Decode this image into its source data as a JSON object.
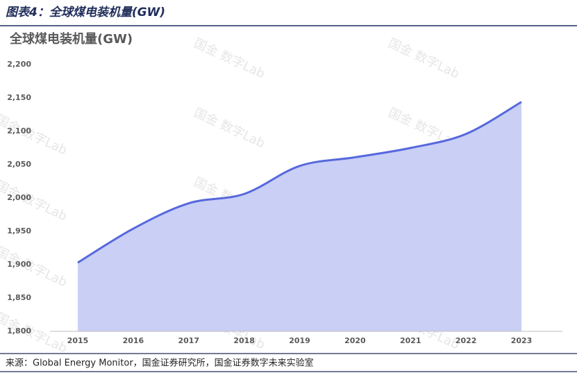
{
  "caption": "图表4：全球煤电装机量(GW)",
  "source": "来源：Global Energy Monitor，国金证券研究所，国金证券数字未来实验室",
  "watermark": "国金 数字Lab",
  "chart_data": {
    "type": "area",
    "title": "全球煤电装机量(GW)",
    "categories": [
      "2015",
      "2016",
      "2017",
      "2018",
      "2019",
      "2020",
      "2021",
      "2022",
      "2023"
    ],
    "values": [
      1903,
      1954,
      1992,
      2006,
      2048,
      2061,
      2075,
      2096,
      2144
    ],
    "color": "#5668dc",
    "fill": "#c9cff5",
    "ylim": [
      1800,
      2200
    ],
    "yticks": [
      {
        "value": 1800,
        "label": "1,800"
      },
      {
        "value": 1850,
        "label": "1,850"
      },
      {
        "value": 1900,
        "label": "1,900"
      },
      {
        "value": 1950,
        "label": "1,950"
      },
      {
        "value": 2000,
        "label": "2,000"
      },
      {
        "value": 2050,
        "label": "2,050"
      },
      {
        "value": 2100,
        "label": "2,100"
      },
      {
        "value": 2150,
        "label": "2,150"
      },
      {
        "value": 2200,
        "label": "2,200"
      }
    ],
    "grid": false
  }
}
